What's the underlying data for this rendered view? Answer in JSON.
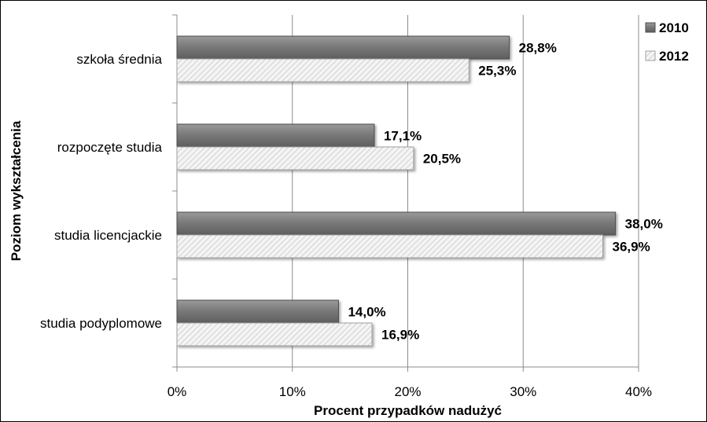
{
  "chart_data": {
    "type": "bar",
    "orientation": "horizontal",
    "categories": [
      "szkoła średnia",
      "rozpoczęte studia",
      "studia licencjackie",
      "studia podyplomowe"
    ],
    "series": [
      {
        "name": "2010",
        "values": [
          28.8,
          17.1,
          38.0,
          14.0
        ],
        "labels": [
          "28,8%",
          "17,1%",
          "38,0%",
          "14,0%"
        ],
        "color": "#7f7f7f"
      },
      {
        "name": "2012",
        "values": [
          25.3,
          20.5,
          36.9,
          16.9
        ],
        "labels": [
          "25,3%",
          "20,5%",
          "36,9%",
          "16,9%"
        ],
        "color": "#f2f2f2"
      }
    ],
    "xlabel": "Procent przypadków nadużyć",
    "ylabel": "Poziom wykształcenia",
    "xlim": [
      0,
      40
    ],
    "xticks": [
      0,
      10,
      20,
      30,
      40
    ],
    "xtick_labels": [
      "0%",
      "10%",
      "20%",
      "30%",
      "40%"
    ],
    "grid": "vertical",
    "legend_position": "top-right"
  }
}
